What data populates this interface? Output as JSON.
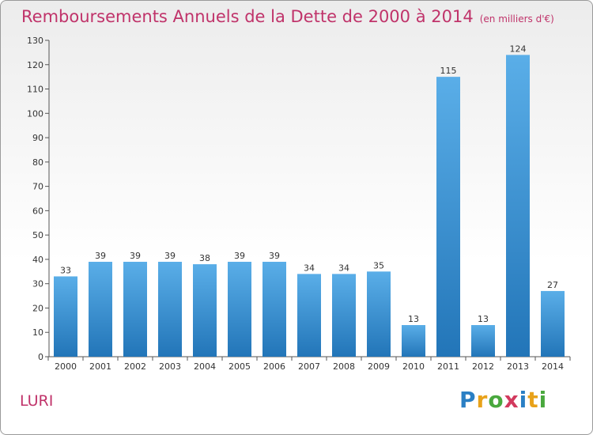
{
  "header": {
    "title": "Remboursements Annuels de la Dette de 2000 à 2014",
    "subtitle": "(en milliers d'€)"
  },
  "location": "LURI",
  "logo": {
    "text": "Proxiti",
    "letters": [
      "P",
      "r",
      "o",
      "x",
      "i",
      "t",
      "i"
    ],
    "colors": [
      "#2a7fc4",
      "#e8a21a",
      "#49a83d",
      "#d23a5e",
      "#2a7fc4",
      "#e8a21a",
      "#49a83d"
    ]
  },
  "colors": {
    "bar_top": "#5aaee8",
    "bar_bottom": "#2275b8",
    "accent": "#c0336a"
  },
  "chart_data": {
    "type": "bar",
    "title": "Remboursements Annuels de la Dette de 2000 à 2014",
    "categories": [
      "2000",
      "2001",
      "2002",
      "2003",
      "2004",
      "2005",
      "2006",
      "2007",
      "2008",
      "2009",
      "2010",
      "2011",
      "2012",
      "2013",
      "2014"
    ],
    "values": [
      33,
      39,
      39,
      39,
      38,
      39,
      39,
      34,
      34,
      35,
      13,
      115,
      13,
      124,
      27
    ],
    "yticks": [
      0,
      10,
      20,
      30,
      40,
      50,
      60,
      70,
      80,
      90,
      100,
      110,
      120,
      130
    ],
    "ylim": [
      0,
      130
    ],
    "grid": false,
    "legend": "none"
  }
}
